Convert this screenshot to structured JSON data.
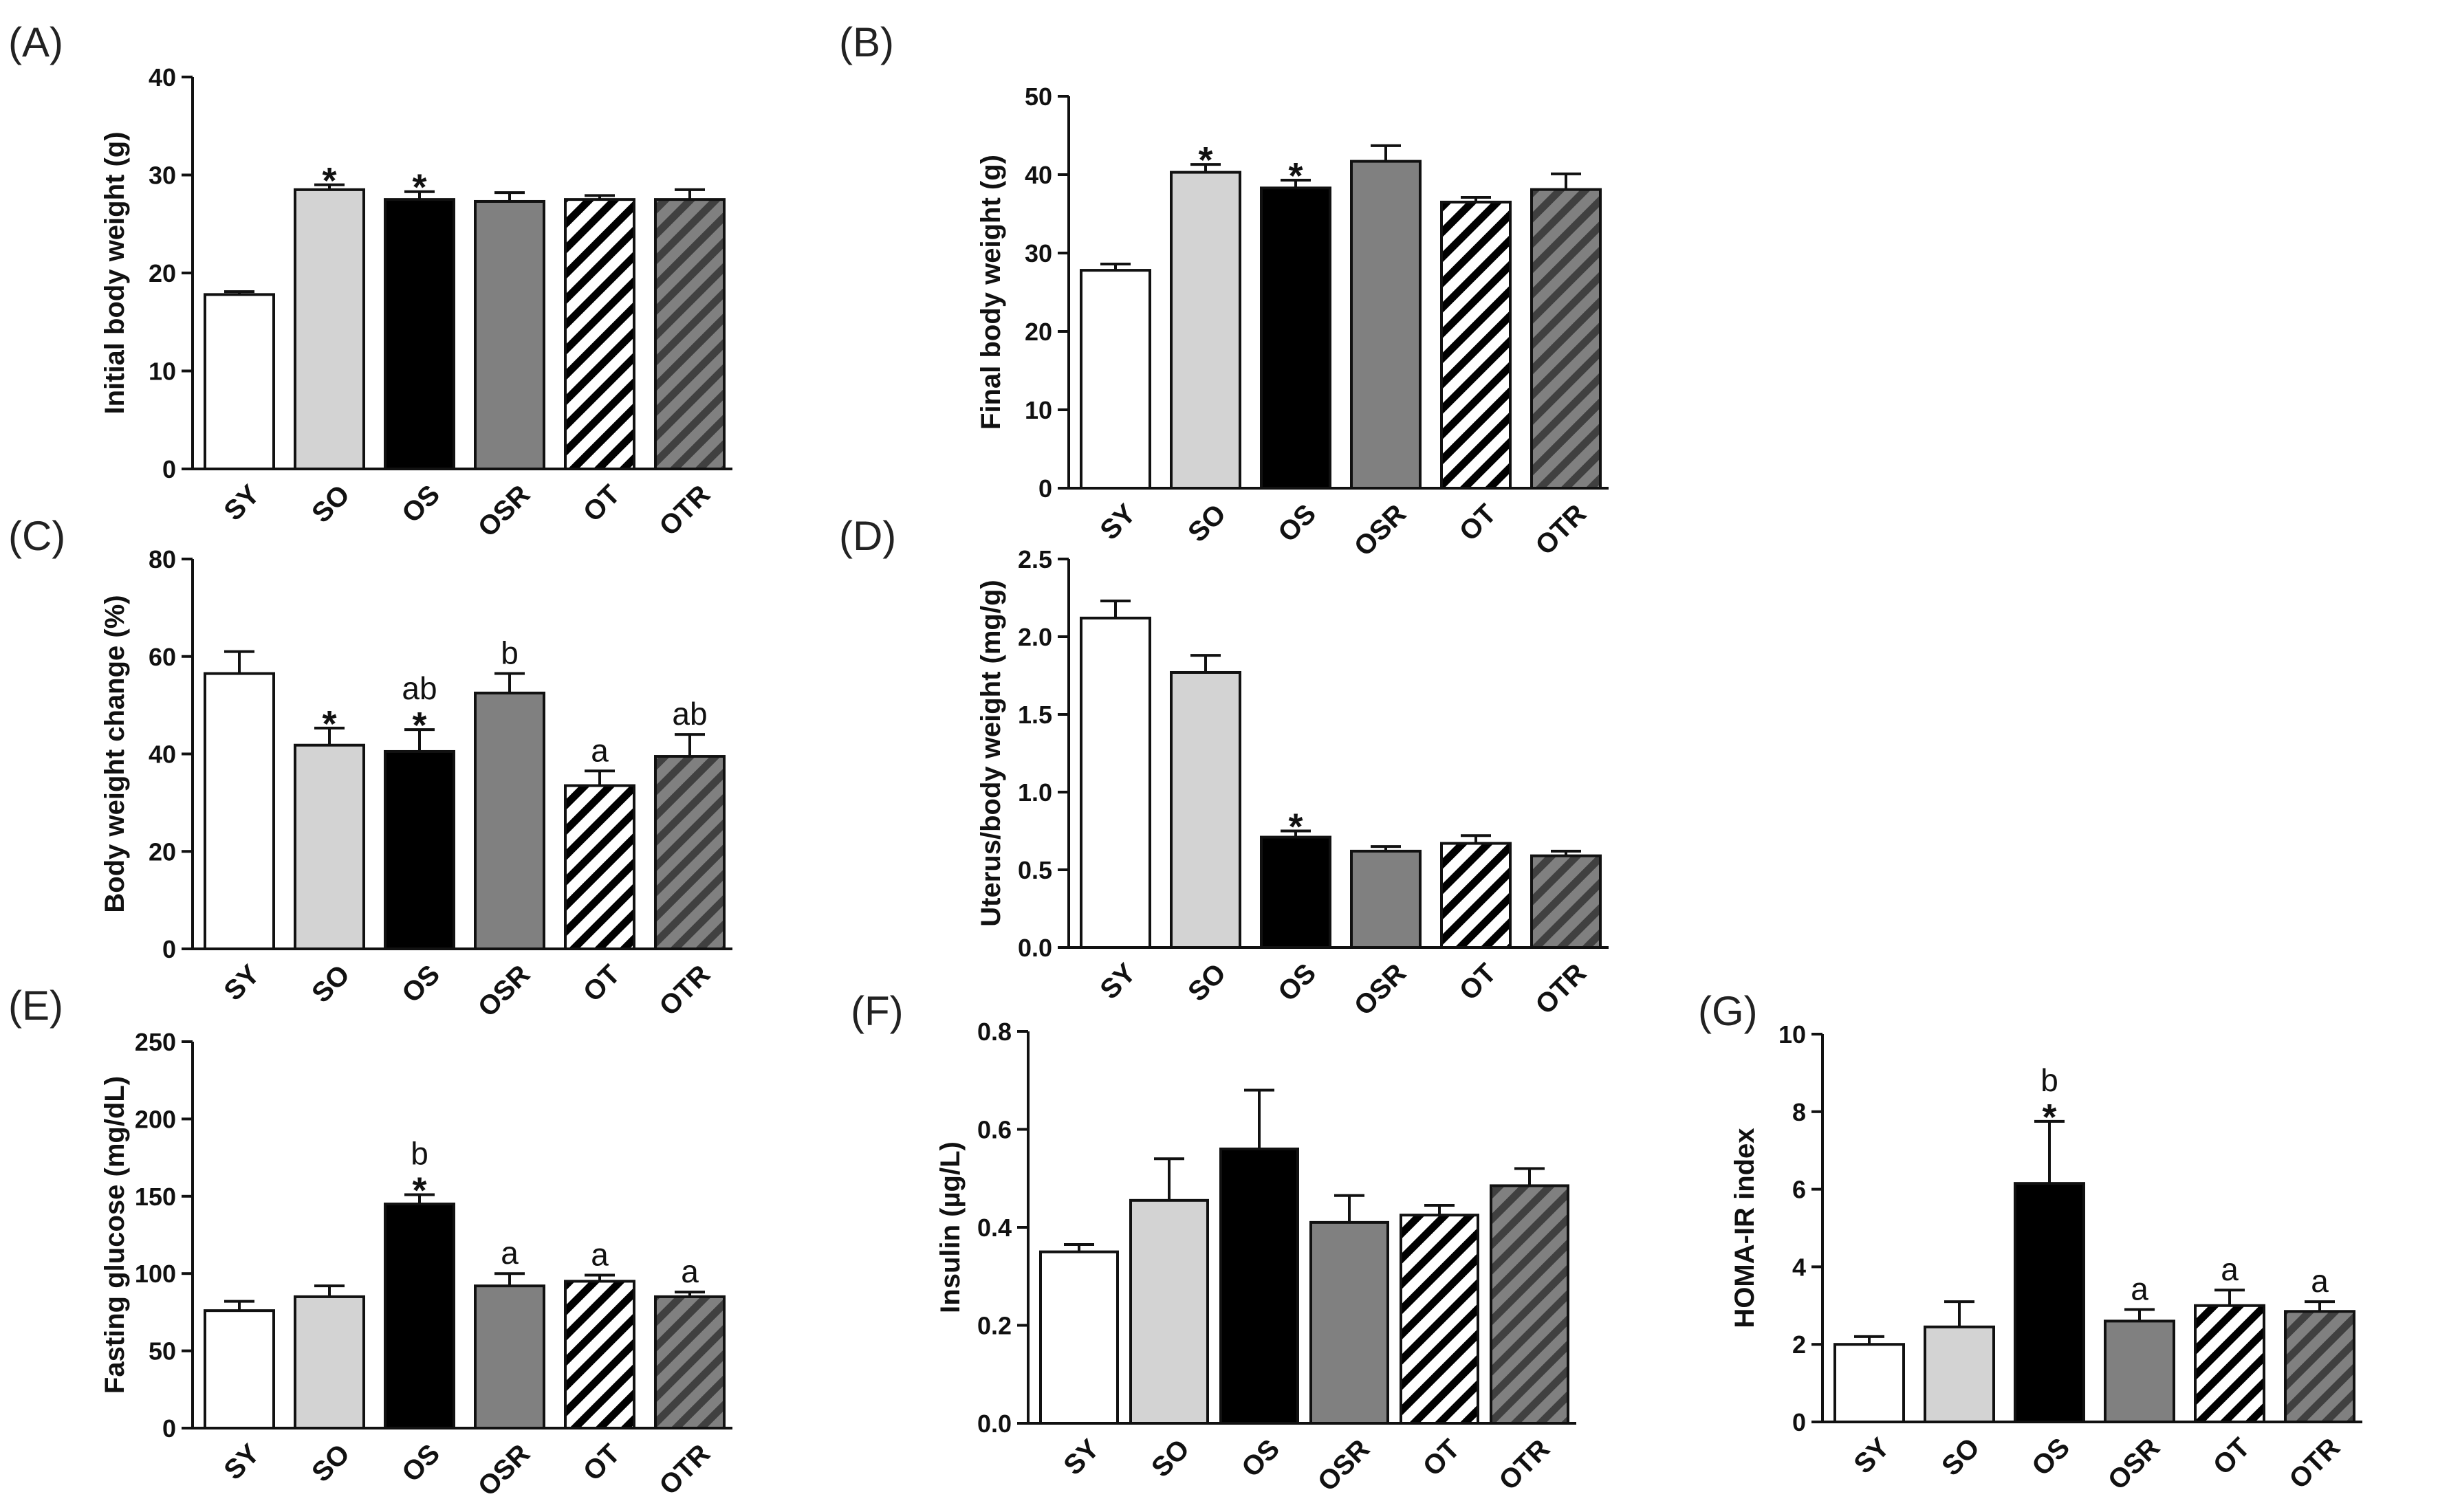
{
  "colors": {
    "SY": "#ffffff",
    "SO": "#d3d3d3",
    "OS": "#000000",
    "OSR": "#808080",
    "OT_stripe": "#000000",
    "OTR_stripe": "#404040",
    "OTR_base": "#808080"
  },
  "chart_data": [
    {
      "panel": "(A)",
      "type": "bar",
      "categories": [
        "SY",
        "SO",
        "OS",
        "OSR",
        "OT",
        "OTR"
      ],
      "values": [
        17.8,
        28.5,
        27.5,
        27.3,
        27.5,
        27.5
      ],
      "errors": [
        0.3,
        0.5,
        0.8,
        0.9,
        0.4,
        1.0
      ],
      "ylabel": "Initial body weight (g)",
      "ylim": [
        0,
        40
      ],
      "yticks": [
        "0",
        "10",
        "20",
        "30",
        "40"
      ],
      "annotations": [
        "",
        "*",
        "*",
        "",
        "",
        ""
      ]
    },
    {
      "panel": "(B)",
      "type": "bar",
      "categories": [
        "SY",
        "SO",
        "OS",
        "OSR",
        "OT",
        "OTR"
      ],
      "values": [
        27.8,
        40.3,
        38.3,
        41.7,
        36.5,
        38.1
      ],
      "errors": [
        0.8,
        1.0,
        1.0,
        2.0,
        0.6,
        2.0
      ],
      "ylabel": "Final body weight (g)",
      "ylim": [
        0,
        50
      ],
      "yticks": [
        "0",
        "10",
        "20",
        "30",
        "40",
        "50"
      ],
      "annotations": [
        "",
        "*",
        "*",
        "",
        "",
        ""
      ]
    },
    {
      "panel": "(C)",
      "type": "bar",
      "categories": [
        "SY",
        "SO",
        "OS",
        "OSR",
        "OT",
        "OTR"
      ],
      "values": [
        56.5,
        41.8,
        40.5,
        52.5,
        33.5,
        39.5
      ],
      "errors": [
        4.5,
        3.5,
        4.5,
        4.0,
        3.0,
        4.5
      ],
      "ylabel": "Body weight change (%)",
      "ylim": [
        0,
        80
      ],
      "yticks": [
        "0",
        "20",
        "40",
        "60",
        "80"
      ],
      "annotations": [
        "",
        "*",
        "ab\n*",
        "b",
        "a",
        "ab"
      ]
    },
    {
      "panel": "(D)",
      "type": "bar",
      "categories": [
        "SY",
        "SO",
        "OS",
        "OSR",
        "OT",
        "OTR"
      ],
      "values": [
        2.12,
        1.77,
        0.71,
        0.62,
        0.67,
        0.59
      ],
      "errors": [
        0.11,
        0.11,
        0.04,
        0.03,
        0.05,
        0.03
      ],
      "ylabel": "Uterus/body weight (mg/g)",
      "ylim": [
        0,
        2.5
      ],
      "yticks": [
        "0.0",
        "0.5",
        "1.0",
        "1.5",
        "2.0",
        "2.5"
      ],
      "annotations": [
        "",
        "",
        "*",
        "",
        "",
        ""
      ]
    },
    {
      "panel": "(E)",
      "type": "bar",
      "categories": [
        "SY",
        "SO",
        "OS",
        "OSR",
        "OT",
        "OTR"
      ],
      "values": [
        76,
        85,
        145,
        92,
        95,
        85
      ],
      "errors": [
        6,
        7,
        6,
        8,
        4,
        3
      ],
      "ylabel": "Fasting glucose (mg/dL)",
      "ylim": [
        0,
        250
      ],
      "yticks": [
        "0",
        "50",
        "100",
        "150",
        "200",
        "250"
      ],
      "annotations": [
        "",
        "",
        "b\n*",
        "a",
        "a",
        "a"
      ]
    },
    {
      "panel": "(F)",
      "type": "bar",
      "categories": [
        "SY",
        "SO",
        "OS",
        "OSR",
        "OT",
        "OTR"
      ],
      "values": [
        0.35,
        0.455,
        0.56,
        0.41,
        0.425,
        0.485
      ],
      "errors": [
        0.015,
        0.085,
        0.12,
        0.055,
        0.02,
        0.035
      ],
      "ylabel": "Insulin (µg/L)",
      "ylim": [
        0,
        0.8
      ],
      "yticks": [
        "0.0",
        "0.2",
        "0.4",
        "0.6",
        "0.8"
      ],
      "annotations": [
        "",
        "",
        "",
        "",
        "",
        ""
      ]
    },
    {
      "panel": "(G)",
      "type": "bar",
      "categories": [
        "SY",
        "SO",
        "OS",
        "OSR",
        "OT",
        "OTR"
      ],
      "values": [
        2.0,
        2.45,
        6.15,
        2.6,
        3.0,
        2.85
      ],
      "errors": [
        0.2,
        0.65,
        1.6,
        0.3,
        0.4,
        0.25
      ],
      "ylabel": "HOMA-IR index",
      "ylim": [
        0,
        10
      ],
      "yticks": [
        "0",
        "2",
        "4",
        "6",
        "8",
        "10"
      ],
      "annotations": [
        "",
        "",
        "b\n*",
        "a",
        "a",
        "a"
      ]
    }
  ]
}
